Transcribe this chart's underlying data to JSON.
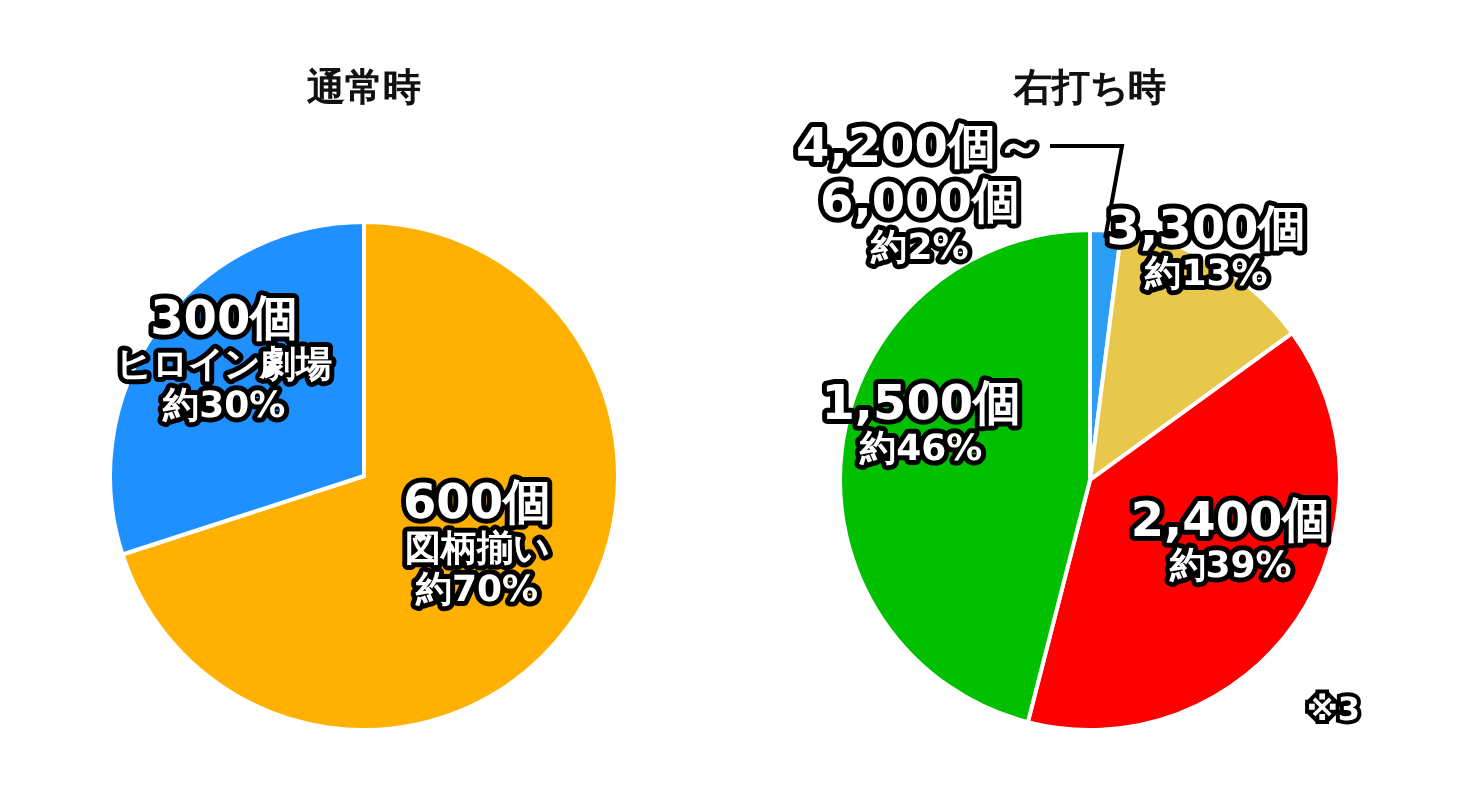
{
  "chart_data": [
    {
      "type": "pie",
      "title": "通常時",
      "categories": [
        "600個図柄揃い",
        "300個ヒロイン劇場"
      ],
      "values": [
        70,
        30
      ],
      "colors": [
        "#ffb000",
        "#1e90ff"
      ],
      "value_labels": [
        "約70%",
        "約30%"
      ]
    },
    {
      "type": "pie",
      "title": "右打ち時",
      "categories": [
        "4,200個～6,000個",
        "3,300個",
        "2,400個",
        "1,500個"
      ],
      "values": [
        2,
        13,
        39,
        46
      ],
      "colors": [
        "#2a9df4",
        "#e8c84a",
        "#ff0000",
        "#00c000"
      ],
      "value_labels": [
        "約2%",
        "約13%",
        "約39%",
        "約46%"
      ],
      "annotations": [
        "※3"
      ]
    }
  ]
}
